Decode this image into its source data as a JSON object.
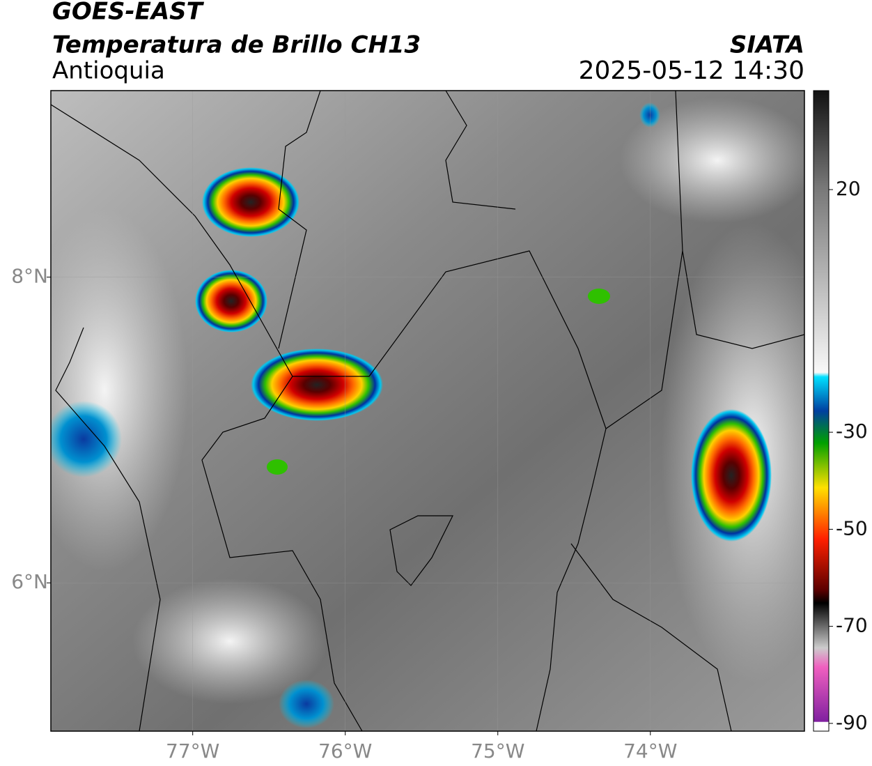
{
  "header": {
    "title": "GOES-EAST",
    "subtitle": "Temperatura de Brillo CH13",
    "region": "Antioquia",
    "source": "SIATA",
    "datetime": "2025-05-12 14:30"
  },
  "map": {
    "xlim": [
      -77.93,
      -72.99
    ],
    "ylim": [
      5.03,
      9.22
    ],
    "xticks": [
      {
        "value": -77,
        "label": "77°W"
      },
      {
        "value": -76,
        "label": "76°W"
      },
      {
        "value": -75,
        "label": "75°W"
      },
      {
        "value": -74,
        "label": "74°W"
      }
    ],
    "yticks": [
      {
        "value": 8,
        "label": "8°N"
      },
      {
        "value": 6,
        "label": "6°N"
      }
    ],
    "grid": true
  },
  "colorbar": {
    "lim": [
      -91.6,
      40.4
    ],
    "ticks": [
      20,
      -30,
      -50,
      -70,
      -90
    ]
  }
}
